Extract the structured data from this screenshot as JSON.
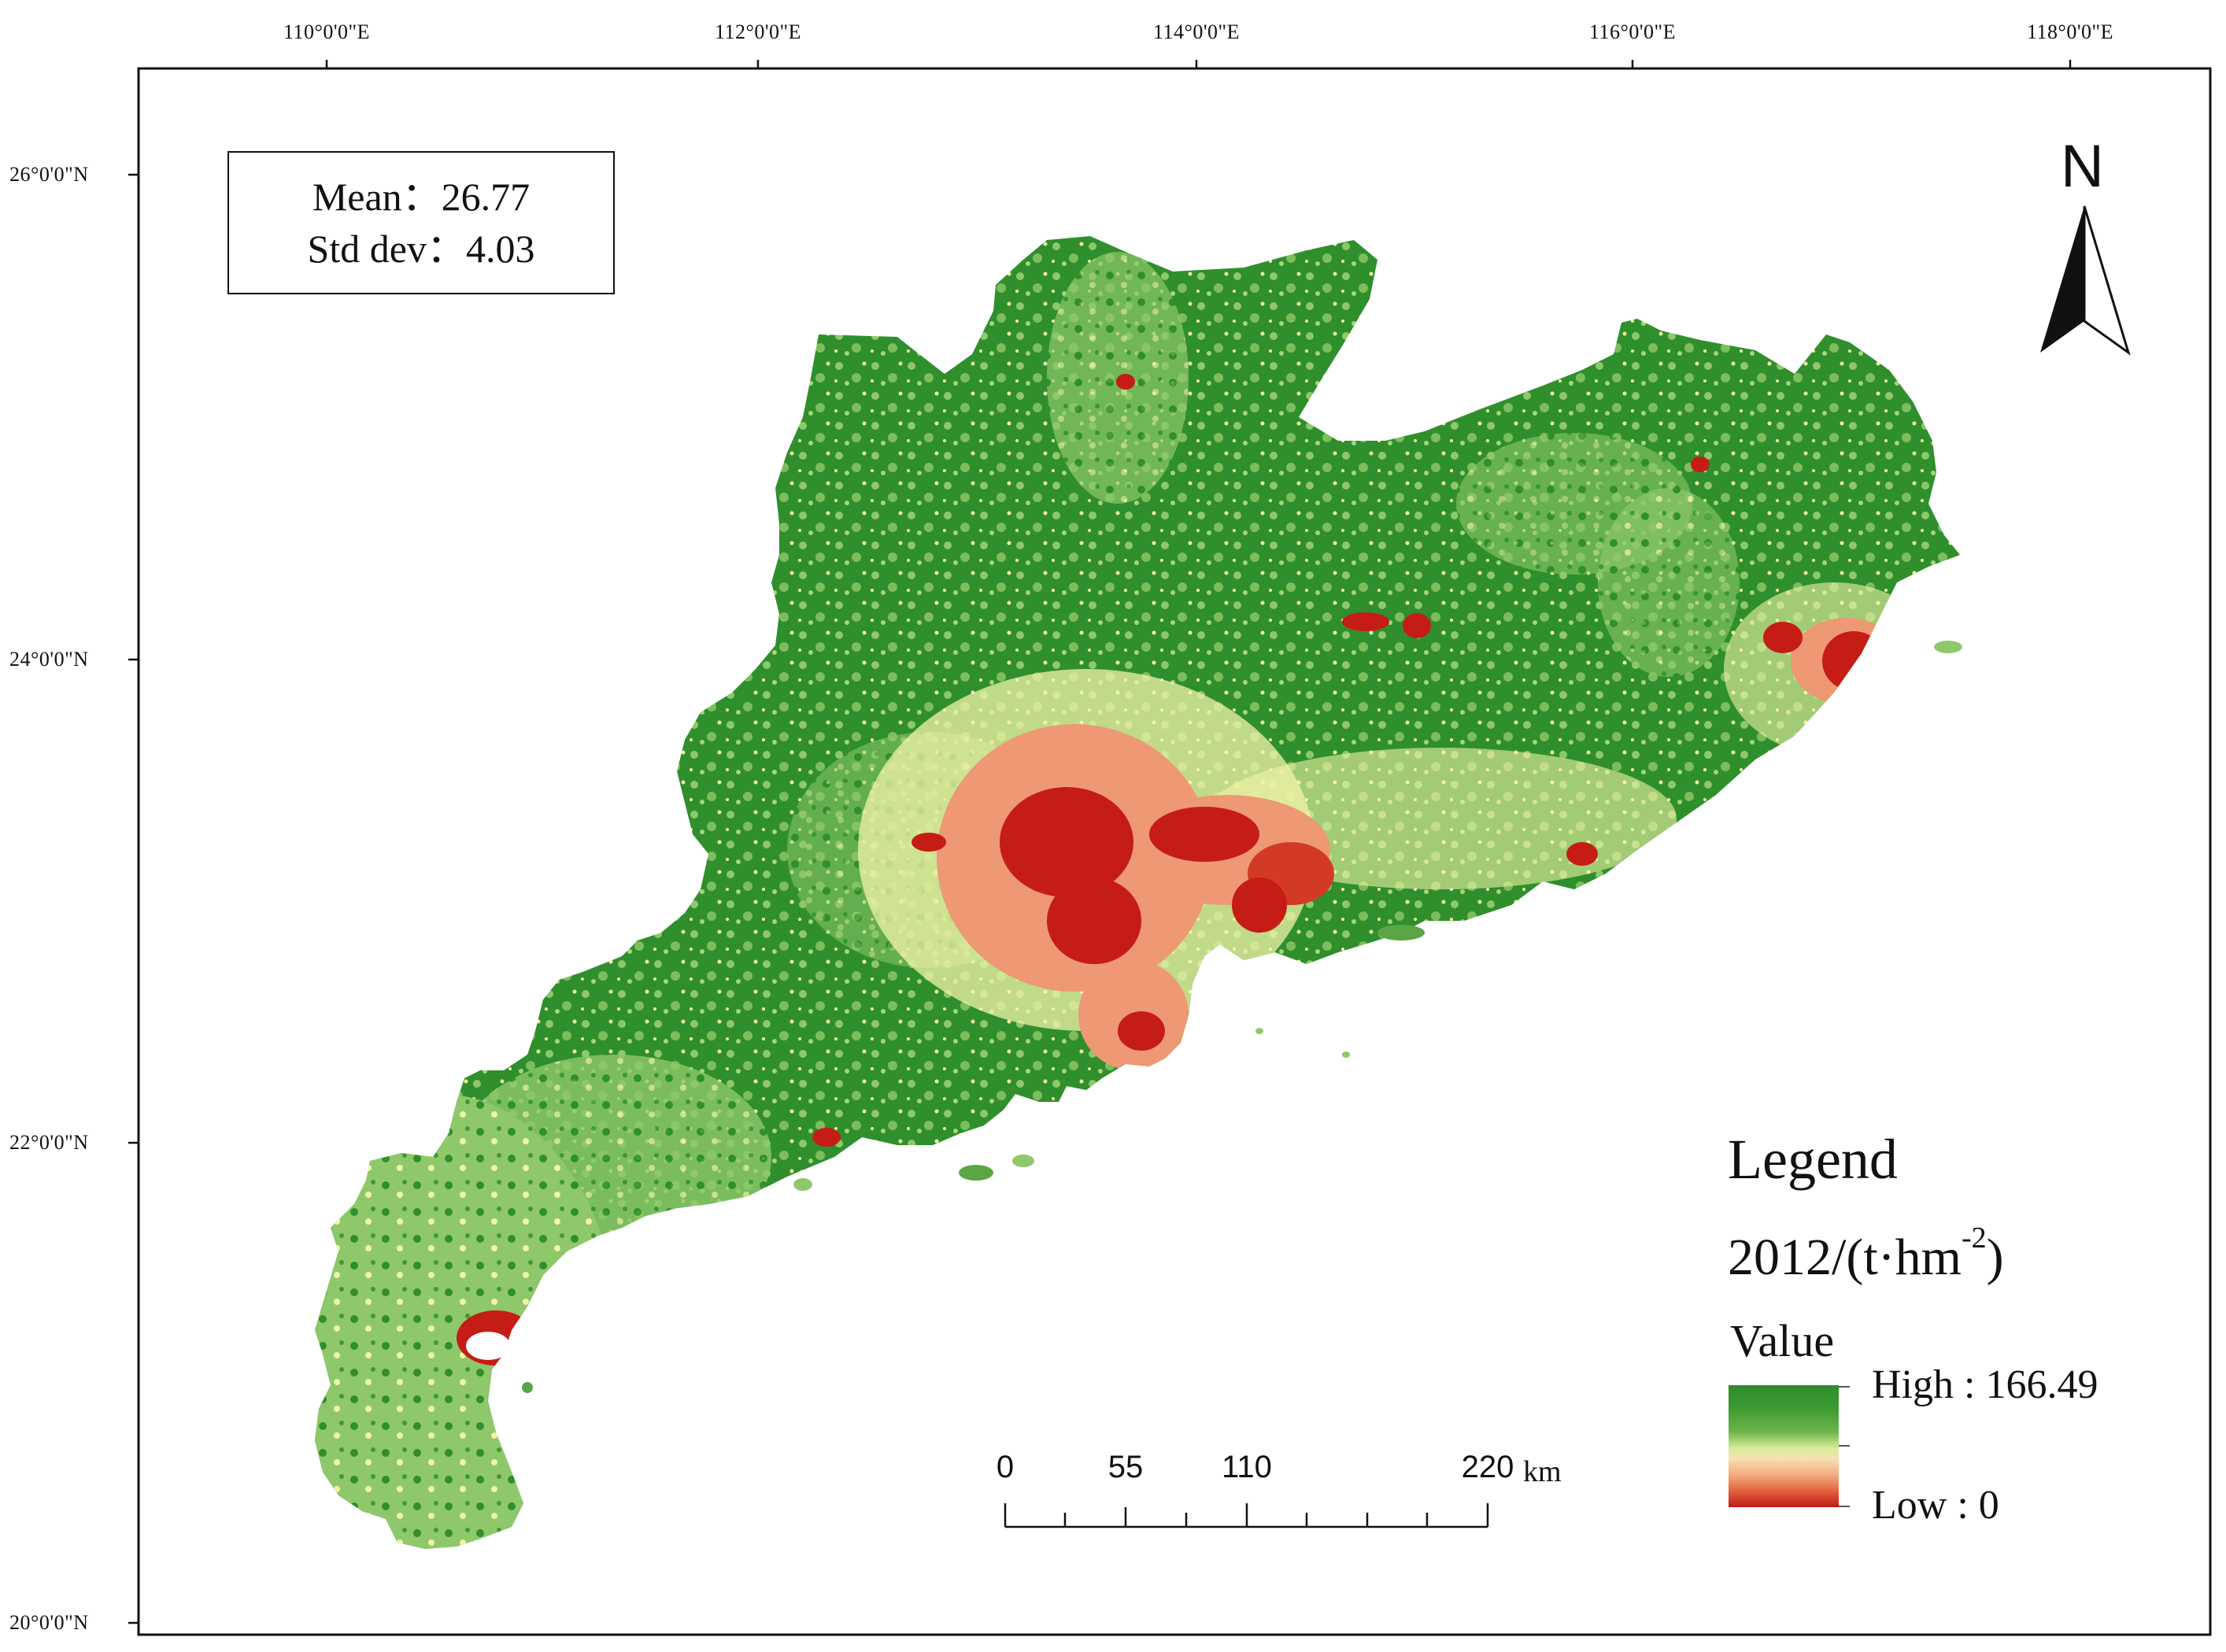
{
  "top_labels": [
    "110°0'0\"E",
    "112°0'0\"E",
    "114°0'0\"E",
    "116°0'0\"E",
    "118°0'0\"E"
  ],
  "left_labels": [
    "26°0'0\"N",
    "24°0'0\"N",
    "22°0'0\"N",
    "20°0'0\"N"
  ],
  "stats": {
    "mean": "Mean：26.77",
    "std": "Std dev：4.03"
  },
  "north_arrow": {
    "label": "N"
  },
  "legend": {
    "title": "Legend",
    "unit_base": "2012/(t·hm",
    "unit_exp": "-2",
    "unit_close": ")",
    "value_label": "Value",
    "high_label": "High : 166.49",
    "low_label": "Low : 0",
    "colors": {
      "high": "#2e8b2e",
      "mid": "#f6e0b4",
      "low": "#c01a16"
    }
  },
  "scale_bar": {
    "labels": [
      "0",
      "55",
      "110",
      "220"
    ],
    "unit": "km"
  },
  "map_colors": {
    "dark_green": "#2f8f2c",
    "light_green": "#8ec86a",
    "pale_yellow": "#f1f3a8",
    "salmon": "#ee9874",
    "red": "#c61c16"
  }
}
